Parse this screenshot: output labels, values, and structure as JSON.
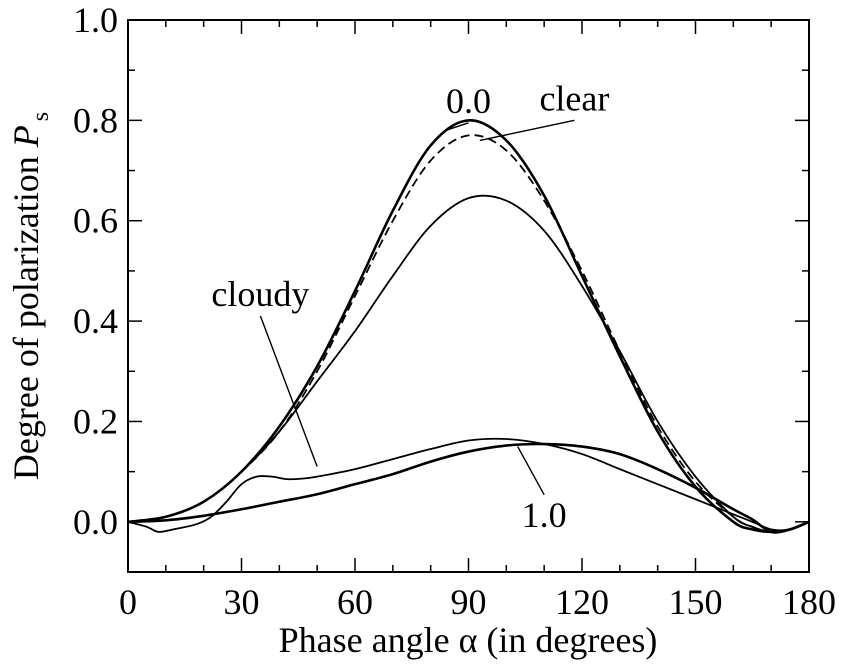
{
  "chart_data": {
    "type": "line",
    "title": "",
    "xlabel": "Phase angle α (in degrees)",
    "ylabel_main": "Degree of polarization ",
    "ylabel_symbol": "P",
    "ylabel_sub": "s",
    "xlim": [
      0,
      180
    ],
    "ylim": [
      -0.1,
      1.0
    ],
    "xticks": [
      0,
      30,
      60,
      90,
      120,
      150,
      180
    ],
    "xtick_labels": [
      "0",
      "30",
      "60",
      "90",
      "120",
      "150",
      "180"
    ],
    "yticks": [
      0.0,
      0.2,
      0.4,
      0.6,
      0.8,
      1.0
    ],
    "ytick_labels": [
      "0.0",
      "0.2",
      "0.4",
      "0.6",
      "0.8",
      "1.0"
    ],
    "grid": false,
    "legend": "none",
    "series": [
      {
        "style": "solid-thick",
        "x": [
          0,
          10,
          20,
          30,
          40,
          50,
          60,
          70,
          80,
          90,
          100,
          110,
          120,
          130,
          140,
          150,
          160,
          165,
          170,
          175,
          180
        ],
        "y": [
          0.0,
          0.01,
          0.04,
          0.1,
          0.19,
          0.31,
          0.46,
          0.62,
          0.75,
          0.8,
          0.76,
          0.65,
          0.49,
          0.33,
          0.18,
          0.07,
          0.0,
          -0.015,
          -0.02,
          -0.015,
          0.0
        ]
      },
      {
        "style": "dashed",
        "x": [
          0,
          10,
          20,
          30,
          40,
          50,
          60,
          70,
          80,
          90,
          100,
          110,
          120,
          130,
          140,
          150,
          160,
          165,
          170,
          175,
          180
        ],
        "y": [
          0.0,
          0.01,
          0.04,
          0.1,
          0.18,
          0.3,
          0.45,
          0.6,
          0.72,
          0.77,
          0.74,
          0.64,
          0.5,
          0.34,
          0.19,
          0.08,
          0.01,
          -0.01,
          -0.02,
          -0.015,
          0.0
        ]
      },
      {
        "style": "solid",
        "x": [
          0,
          10,
          20,
          30,
          40,
          50,
          60,
          70,
          80,
          90,
          100,
          110,
          120,
          130,
          140,
          150,
          160,
          165,
          170,
          175,
          180
        ],
        "y": [
          0.0,
          0.01,
          0.04,
          0.1,
          0.18,
          0.28,
          0.38,
          0.49,
          0.59,
          0.645,
          0.64,
          0.58,
          0.47,
          0.34,
          0.2,
          0.09,
          0.01,
          -0.01,
          -0.02,
          -0.015,
          0.0
        ]
      },
      {
        "style": "solid",
        "x": [
          0,
          5,
          8,
          12,
          18,
          22,
          26,
          30,
          34,
          38,
          42,
          46,
          50,
          60,
          70,
          80,
          90,
          100,
          110,
          120,
          130,
          140,
          150,
          160,
          165,
          170,
          175,
          180
        ],
        "y": [
          0.0,
          -0.01,
          -0.02,
          -0.015,
          -0.005,
          0.01,
          0.04,
          0.075,
          0.09,
          0.09,
          0.085,
          0.086,
          0.09,
          0.105,
          0.125,
          0.145,
          0.162,
          0.165,
          0.155,
          0.135,
          0.105,
          0.075,
          0.045,
          0.015,
          0.0,
          -0.015,
          -0.015,
          0.0
        ]
      },
      {
        "style": "solid-thick",
        "x": [
          0,
          10,
          20,
          30,
          40,
          50,
          60,
          70,
          80,
          90,
          100,
          110,
          120,
          130,
          140,
          150,
          160,
          165,
          170,
          175,
          180
        ],
        "y": [
          0.0,
          0.003,
          0.012,
          0.025,
          0.04,
          0.055,
          0.075,
          0.095,
          0.12,
          0.14,
          0.152,
          0.155,
          0.15,
          0.135,
          0.105,
          0.068,
          0.025,
          0.005,
          -0.02,
          -0.015,
          0.0
        ]
      }
    ],
    "annotations": [
      {
        "text": "0.0",
        "x": 90,
        "y": 0.815,
        "line_to_x": 84,
        "line_to_y": 0.78
      },
      {
        "text": "clear",
        "x": 118,
        "y": 0.82,
        "line_to_x": 93,
        "line_to_y": 0.76
      },
      {
        "text": "cloudy",
        "x": 35,
        "y": 0.43,
        "line_to_x": 50,
        "line_to_y": 0.11
      },
      {
        "text": "1.0",
        "x": 110,
        "y": -0.01,
        "line_to_x": 103,
        "line_to_y": 0.15
      }
    ]
  }
}
